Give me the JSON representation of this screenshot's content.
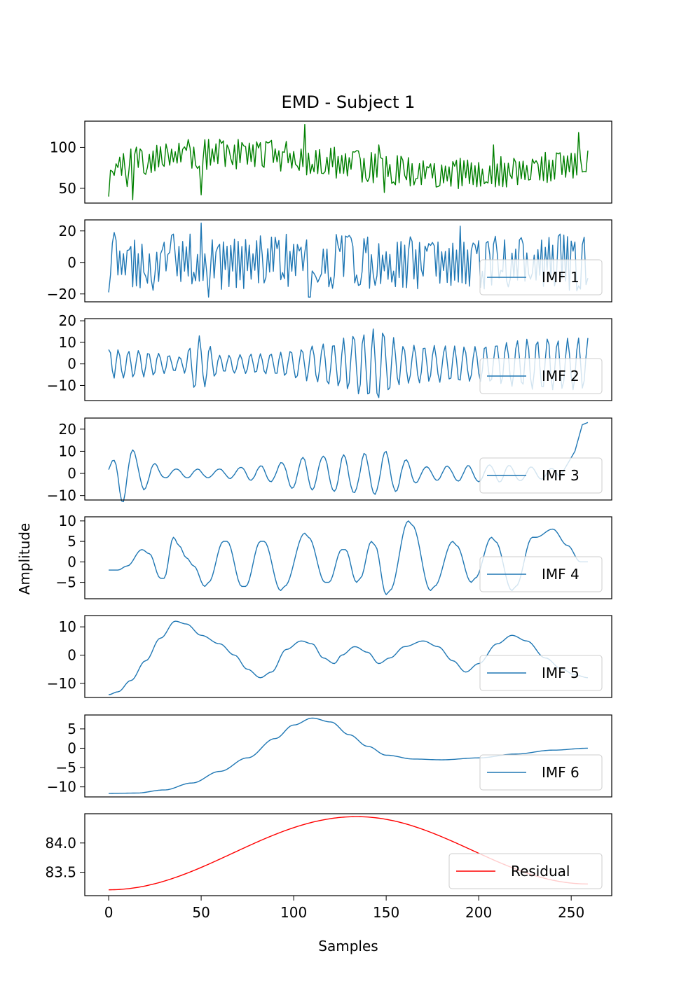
{
  "chart_data": {
    "type": "line",
    "title": "EMD - Subject 1",
    "xlabel": "Samples",
    "ylabel": "Amplitude",
    "x_range": [
      0,
      259
    ],
    "xlim": [
      -12.9,
      271.9
    ],
    "x_ticks": [
      0,
      50,
      100,
      150,
      200,
      250
    ],
    "x_tick_labels": [
      "0",
      "50",
      "100",
      "150",
      "200",
      "250"
    ],
    "legend_placement": "lower right",
    "colors": {
      "signal": "#008000",
      "imf": "#1f77b4",
      "residual": "#ff0000"
    },
    "panels": [
      {
        "id": "signal",
        "name": "",
        "color": "#008000",
        "ylim": [
          32,
          132
        ],
        "yticks": [
          50,
          100
        ],
        "ytick_labels": [
          "50",
          "100"
        ],
        "kind": "noise",
        "seed": 11,
        "base": 80,
        "trend_amp": 12,
        "noise_amp": 16,
        "anchors": [
          [
            0,
            40
          ],
          [
            4,
            80
          ],
          [
            10,
            52
          ],
          [
            13,
            36
          ],
          [
            50,
            42
          ],
          [
            100,
            95
          ],
          [
            106,
            128
          ],
          [
            146,
            103
          ],
          [
            149,
            45
          ],
          [
            208,
            103
          ],
          [
            254,
            118
          ],
          [
            256,
            70
          ],
          [
            259,
            96
          ]
        ]
      },
      {
        "id": "imf1",
        "name": "IMF 1",
        "color": "#1f77b4",
        "ylim": [
          -25,
          27
        ],
        "yticks": [
          -20,
          0,
          20
        ],
        "ytick_labels": [
          "−20",
          "0",
          "20"
        ],
        "kind": "noise",
        "seed": 23,
        "base": 0,
        "trend_amp": 0,
        "noise_amp": 15,
        "anchors": [
          [
            0,
            -19
          ],
          [
            3,
            19
          ],
          [
            50,
            25
          ],
          [
            54,
            -22
          ],
          [
            108,
            -22
          ],
          [
            109,
            -22
          ],
          [
            190,
            23
          ],
          [
            253,
            -18
          ],
          [
            257,
            16
          ]
        ]
      },
      {
        "id": "imf2",
        "name": "IMF 2",
        "color": "#1f77b4",
        "ylim": [
          -17,
          21
        ],
        "yticks": [
          -10,
          0,
          10,
          20
        ],
        "ytick_labels": [
          "−10",
          "0",
          "10",
          "20"
        ],
        "kind": "osc",
        "seed": 37,
        "amps": [
          [
            0,
            7
          ],
          [
            20,
            6
          ],
          [
            40,
            3
          ],
          [
            48,
            14
          ],
          [
            60,
            4
          ],
          [
            90,
            5
          ],
          [
            120,
            10
          ],
          [
            145,
            17
          ],
          [
            160,
            9
          ],
          [
            200,
            8
          ],
          [
            230,
            12
          ],
          [
            259,
            12
          ]
        ],
        "period": 5.6
      },
      {
        "id": "imf3",
        "name": "IMF 3",
        "color": "#1f77b4",
        "ylim": [
          -12,
          25
        ],
        "yticks": [
          -10,
          0,
          10,
          20
        ],
        "ytick_labels": [
          "−10",
          "0",
          "10",
          "20"
        ],
        "kind": "osc",
        "seed": 41,
        "amps": [
          [
            0,
            3
          ],
          [
            8,
            14
          ],
          [
            16,
            9
          ],
          [
            30,
            2
          ],
          [
            60,
            2
          ],
          [
            90,
            4
          ],
          [
            100,
            7
          ],
          [
            120,
            8
          ],
          [
            150,
            10
          ],
          [
            170,
            3
          ],
          [
            210,
            4
          ],
          [
            245,
            2
          ],
          [
            259,
            2
          ]
        ],
        "period": 11.5,
        "tail": [
          [
            245,
            0
          ],
          [
            252,
            10
          ],
          [
            256,
            22
          ],
          [
            259,
            23
          ]
        ]
      },
      {
        "id": "imf4",
        "name": "IMF 4",
        "color": "#1f77b4",
        "ylim": [
          -9,
          11
        ],
        "yticks": [
          -5,
          0,
          5,
          10
        ],
        "ytick_labels": [
          "−5",
          "0",
          "5",
          "10"
        ],
        "kind": "points",
        "points": [
          [
            0,
            -2
          ],
          [
            5,
            -2
          ],
          [
            10,
            -1
          ],
          [
            18,
            3
          ],
          [
            22,
            2
          ],
          [
            28,
            -4
          ],
          [
            30,
            -4
          ],
          [
            35,
            6
          ],
          [
            38,
            4
          ],
          [
            42,
            1
          ],
          [
            46,
            -1
          ],
          [
            52,
            -6
          ],
          [
            54,
            -5
          ],
          [
            62,
            5
          ],
          [
            64,
            5
          ],
          [
            72,
            -6
          ],
          [
            74,
            -6
          ],
          [
            82,
            5
          ],
          [
            84,
            5
          ],
          [
            93,
            -7
          ],
          [
            95,
            -6
          ],
          [
            106,
            7
          ],
          [
            108,
            6
          ],
          [
            117,
            -5
          ],
          [
            119,
            -5
          ],
          [
            126,
            3
          ],
          [
            128,
            3
          ],
          [
            134,
            -5
          ],
          [
            136,
            -4
          ],
          [
            142,
            5
          ],
          [
            144,
            4
          ],
          [
            150,
            -8
          ],
          [
            152,
            -7
          ],
          [
            162,
            10
          ],
          [
            164,
            9
          ],
          [
            174,
            -7
          ],
          [
            176,
            -6
          ],
          [
            186,
            5
          ],
          [
            188,
            4
          ],
          [
            196,
            -5
          ],
          [
            198,
            -4
          ],
          [
            207,
            6
          ],
          [
            209,
            5
          ],
          [
            218,
            -7
          ],
          [
            220,
            -6
          ],
          [
            229,
            6
          ],
          [
            231,
            6
          ],
          [
            240,
            8
          ],
          [
            248,
            4
          ],
          [
            255,
            0
          ],
          [
            259,
            0
          ]
        ]
      },
      {
        "id": "imf5",
        "name": "IMF 5",
        "color": "#1f77b4",
        "ylim": [
          -15,
          14
        ],
        "yticks": [
          -10,
          0,
          10
        ],
        "ytick_labels": [
          "−10",
          "0",
          "10"
        ],
        "kind": "points",
        "points": [
          [
            0,
            -14
          ],
          [
            5,
            -13
          ],
          [
            12,
            -9
          ],
          [
            20,
            -2
          ],
          [
            28,
            6
          ],
          [
            36,
            12
          ],
          [
            42,
            11
          ],
          [
            50,
            7
          ],
          [
            60,
            4
          ],
          [
            68,
            0
          ],
          [
            75,
            -5
          ],
          [
            82,
            -8
          ],
          [
            88,
            -6
          ],
          [
            96,
            2
          ],
          [
            104,
            5
          ],
          [
            110,
            4
          ],
          [
            116,
            -1
          ],
          [
            122,
            -3
          ],
          [
            126,
            0
          ],
          [
            133,
            3
          ],
          [
            140,
            1
          ],
          [
            146,
            -3
          ],
          [
            152,
            -1
          ],
          [
            160,
            3
          ],
          [
            170,
            5
          ],
          [
            178,
            3
          ],
          [
            186,
            -2
          ],
          [
            193,
            -6
          ],
          [
            200,
            -3
          ],
          [
            210,
            4
          ],
          [
            218,
            7
          ],
          [
            226,
            5
          ],
          [
            236,
            -1
          ],
          [
            245,
            -5
          ],
          [
            252,
            -7
          ],
          [
            259,
            -8
          ]
        ]
      },
      {
        "id": "imf6",
        "name": "IMF 6",
        "color": "#1f77b4",
        "ylim": [
          -12.6,
          8.6
        ],
        "yticks": [
          -10,
          -5,
          0,
          5
        ],
        "ytick_labels": [
          "−10",
          "−5",
          "0",
          "5"
        ],
        "kind": "points",
        "points": [
          [
            0,
            -11.7
          ],
          [
            15,
            -11.6
          ],
          [
            30,
            -10.8
          ],
          [
            45,
            -9
          ],
          [
            60,
            -6
          ],
          [
            75,
            -2.5
          ],
          [
            90,
            2.5
          ],
          [
            100,
            6
          ],
          [
            110,
            7.8
          ],
          [
            120,
            6.8
          ],
          [
            130,
            3.5
          ],
          [
            140,
            0.5
          ],
          [
            150,
            -1.8
          ],
          [
            165,
            -2.8
          ],
          [
            180,
            -3
          ],
          [
            200,
            -2.5
          ],
          [
            220,
            -1.5
          ],
          [
            240,
            -0.5
          ],
          [
            259,
            0
          ]
        ]
      },
      {
        "id": "residual",
        "name": "Residual",
        "color": "#ff0000",
        "ylim": [
          83.1,
          84.5
        ],
        "yticks": [
          83.5,
          84.0
        ],
        "ytick_labels": [
          "83.5",
          "84.0"
        ],
        "kind": "cosine",
        "start": 83.2,
        "peak": 84.45,
        "peak_at": 134,
        "end": 83.3
      }
    ]
  }
}
